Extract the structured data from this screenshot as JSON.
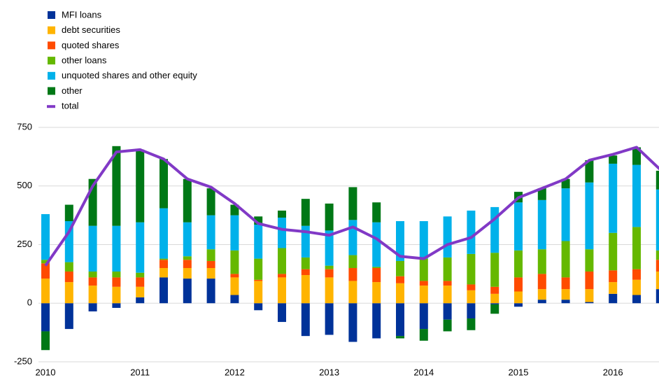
{
  "chart_data": {
    "type": "bar",
    "stacked": true,
    "categories": [
      "2010",
      null,
      null,
      null,
      "2011",
      null,
      null,
      null,
      "2012",
      null,
      null,
      null,
      "2013",
      null,
      null,
      null,
      "2014",
      null,
      null,
      null,
      "2015",
      null,
      null,
      null,
      "2016",
      null,
      null
    ],
    "series": [
      {
        "name": "MFI loans",
        "color": "#003299",
        "values": [
          -120,
          -110,
          -35,
          -20,
          25,
          110,
          105,
          105,
          35,
          -30,
          -80,
          -140,
          -135,
          -165,
          -150,
          -140,
          -110,
          -70,
          -65,
          -5,
          -15,
          15,
          15,
          5,
          40,
          35,
          60
        ]
      },
      {
        "name": "debt securities",
        "color": "#ffb400",
        "values": [
          105,
          90,
          75,
          70,
          45,
          40,
          45,
          45,
          75,
          95,
          110,
          120,
          110,
          95,
          90,
          85,
          75,
          75,
          55,
          40,
          50,
          45,
          45,
          55,
          50,
          65,
          75
        ]
      },
      {
        "name": "quoted shares",
        "color": "#ff4b00",
        "values": [
          65,
          45,
          35,
          40,
          40,
          35,
          35,
          30,
          15,
          5,
          15,
          25,
          35,
          55,
          60,
          30,
          20,
          20,
          25,
          30,
          60,
          65,
          50,
          75,
          50,
          45,
          50
        ]
      },
      {
        "name": "other loans",
        "color": "#65b800",
        "values": [
          15,
          40,
          25,
          25,
          20,
          5,
          15,
          50,
          100,
          90,
          110,
          50,
          15,
          55,
          5,
          65,
          95,
          100,
          130,
          145,
          115,
          105,
          155,
          95,
          160,
          180,
          40
        ]
      },
      {
        "name": "unquoted shares and other equity",
        "color": "#00b1ea",
        "values": [
          195,
          175,
          195,
          195,
          215,
          215,
          145,
          145,
          150,
          145,
          130,
          135,
          150,
          150,
          190,
          170,
          160,
          175,
          185,
          195,
          205,
          210,
          225,
          285,
          295,
          265,
          260
        ]
      },
      {
        "name": "other",
        "color": "#007816",
        "values": [
          -80,
          70,
          200,
          340,
          310,
          210,
          185,
          115,
          45,
          35,
          30,
          115,
          115,
          140,
          85,
          -10,
          -50,
          -50,
          -50,
          -40,
          45,
          50,
          40,
          95,
          35,
          75,
          80
        ]
      },
      {
        "name": "total",
        "color": "#8139c6",
        "type": "line",
        "values": [
          160,
          305,
          500,
          645,
          655,
          615,
          530,
          495,
          425,
          340,
          315,
          305,
          290,
          325,
          275,
          200,
          190,
          250,
          280,
          360,
          450,
          490,
          530,
          610,
          635,
          665,
          570
        ]
      }
    ],
    "ylim": [
      -250,
      750
    ],
    "yticks": [
      -250,
      0,
      250,
      500,
      750
    ],
    "grid": true,
    "legend": "top-left"
  }
}
